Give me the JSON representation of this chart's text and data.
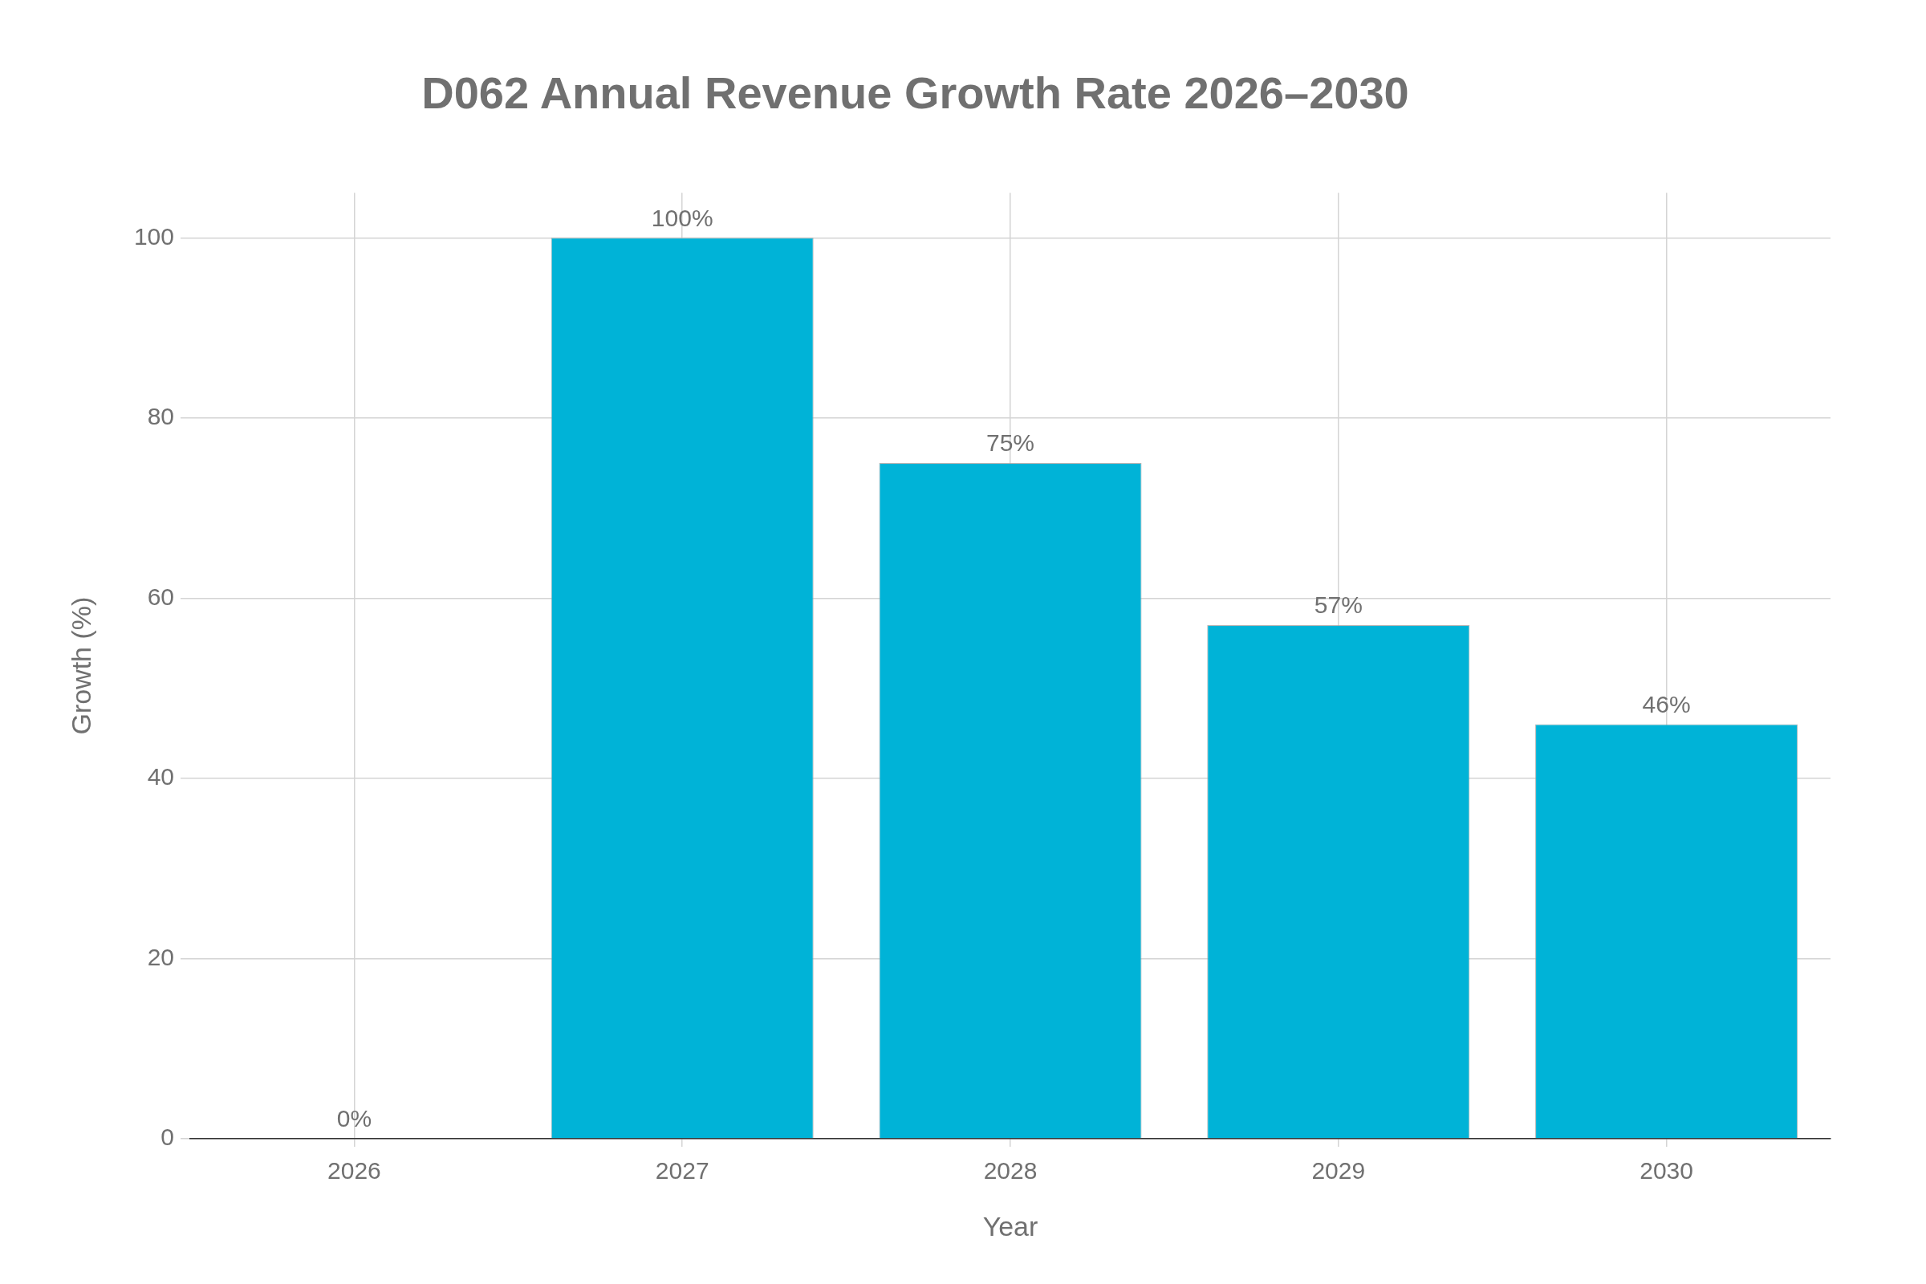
{
  "chart_data": {
    "type": "bar",
    "title": "D062 Annual Revenue Growth Rate 2026–2030",
    "xlabel": "Year",
    "ylabel": "Growth (%)",
    "categories": [
      "2026",
      "2027",
      "2028",
      "2029",
      "2030"
    ],
    "values": [
      0,
      100,
      75,
      57,
      46
    ],
    "value_labels": [
      "0%",
      "100%",
      "75%",
      "57%",
      "46%"
    ],
    "color": "#00b3d7",
    "ylim": [
      0,
      105
    ],
    "yticks": [
      0,
      20,
      40,
      60,
      80,
      100
    ],
    "grid": true
  }
}
